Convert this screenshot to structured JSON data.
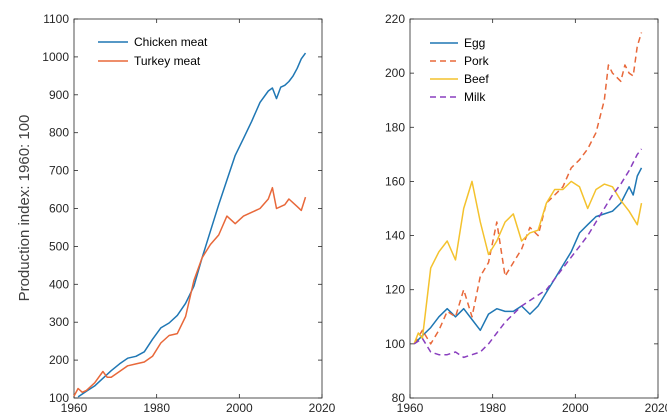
{
  "chart_data": [
    {
      "type": "line",
      "ylabel": "Production index: 1960: 100",
      "xlim": [
        1960,
        2020
      ],
      "ylim": [
        100,
        1100
      ],
      "xticks": [
        1960,
        1980,
        2000,
        2020
      ],
      "yticks": [
        100,
        200,
        300,
        400,
        500,
        600,
        700,
        800,
        900,
        1000,
        1100
      ],
      "legend_position": "top-left",
      "grid": false,
      "series": [
        {
          "name": "Chicken meat",
          "color": "#1f77b4",
          "dash": "solid",
          "x": [
            1961,
            1963,
            1965,
            1967,
            1969,
            1971,
            1973,
            1975,
            1977,
            1979,
            1981,
            1983,
            1985,
            1987,
            1989,
            1991,
            1993,
            1995,
            1997,
            1999,
            2001,
            2003,
            2005,
            2007,
            2008,
            2009,
            2010,
            2011,
            2012,
            2013,
            2014,
            2015,
            2016
          ],
          "y": [
            103,
            118,
            132,
            152,
            172,
            190,
            205,
            210,
            222,
            255,
            285,
            298,
            318,
            350,
            395,
            470,
            540,
            610,
            675,
            740,
            785,
            830,
            880,
            910,
            918,
            890,
            920,
            925,
            935,
            950,
            970,
            995,
            1010
          ]
        },
        {
          "name": "Turkey meat",
          "color": "#e8683a",
          "dash": "solid",
          "x": [
            1960,
            1961,
            1962,
            1963,
            1965,
            1967,
            1968,
            1969,
            1971,
            1973,
            1975,
            1977,
            1979,
            1981,
            1983,
            1985,
            1987,
            1989,
            1991,
            1993,
            1995,
            1997,
            1999,
            2001,
            2003,
            2005,
            2007,
            2008,
            2009,
            2010,
            2011,
            2012,
            2013,
            2014,
            2015,
            2016
          ],
          "y": [
            105,
            125,
            115,
            120,
            140,
            170,
            155,
            155,
            170,
            185,
            190,
            195,
            210,
            245,
            265,
            270,
            315,
            410,
            470,
            505,
            530,
            580,
            560,
            580,
            590,
            600,
            625,
            655,
            600,
            605,
            610,
            625,
            615,
            605,
            595,
            630
          ]
        }
      ]
    },
    {
      "type": "line",
      "xlim": [
        1960,
        2020
      ],
      "ylim": [
        80,
        220
      ],
      "xticks": [
        1960,
        1980,
        2000,
        2020
      ],
      "yticks": [
        80,
        100,
        120,
        140,
        160,
        180,
        200,
        220
      ],
      "legend_position": "top-left",
      "grid": false,
      "series": [
        {
          "name": "Egg",
          "color": "#1f77b4",
          "dash": "solid",
          "x": [
            1961,
            1963,
            1965,
            1967,
            1969,
            1971,
            1973,
            1975,
            1977,
            1979,
            1981,
            1983,
            1985,
            1987,
            1989,
            1991,
            1993,
            1995,
            1997,
            1999,
            2001,
            2003,
            2005,
            2007,
            2009,
            2011,
            2013,
            2014,
            2015,
            2016
          ],
          "y": [
            100,
            103,
            106,
            110,
            113,
            110,
            113,
            109,
            105,
            111,
            113,
            112,
            112,
            114,
            111,
            114,
            119,
            124,
            129,
            134,
            141,
            144,
            147,
            148,
            149,
            152,
            158,
            155,
            162,
            165
          ]
        },
        {
          "name": "Pork",
          "color": "#e8683a",
          "dash": "dashed",
          "x": [
            1961,
            1963,
            1965,
            1967,
            1969,
            1971,
            1973,
            1975,
            1977,
            1979,
            1981,
            1983,
            1985,
            1987,
            1989,
            1991,
            1993,
            1995,
            1997,
            1999,
            2001,
            2003,
            2005,
            2007,
            2008,
            2009,
            2011,
            2012,
            2013,
            2014,
            2015,
            2016
          ],
          "y": [
            100,
            105,
            100,
            105,
            112,
            110,
            120,
            110,
            125,
            130,
            145,
            125,
            130,
            135,
            143,
            140,
            152,
            155,
            158,
            165,
            168,
            172,
            178,
            190,
            203,
            200,
            197,
            203,
            200,
            199,
            210,
            215
          ]
        },
        {
          "name": "Beef",
          "color": "#f4c22d",
          "dash": "solid",
          "x": [
            1961,
            1962,
            1963,
            1965,
            1967,
            1969,
            1971,
            1973,
            1975,
            1977,
            1979,
            1981,
            1983,
            1985,
            1987,
            1989,
            1991,
            1993,
            1995,
            1997,
            1999,
            2001,
            2003,
            2005,
            2007,
            2009,
            2011,
            2013,
            2015,
            2016
          ],
          "y": [
            100,
            104,
            102,
            128,
            134,
            138,
            131,
            150,
            160,
            145,
            133,
            138,
            145,
            148,
            138,
            141,
            142,
            152,
            157,
            157,
            160,
            158,
            150,
            157,
            159,
            158,
            153,
            149,
            144,
            152
          ]
        },
        {
          "name": "Milk",
          "color": "#8a3fbf",
          "dash": "dashed",
          "x": [
            1961,
            1963,
            1965,
            1967,
            1969,
            1971,
            1973,
            1975,
            1977,
            1979,
            1981,
            1983,
            1985,
            1987,
            1989,
            1991,
            1993,
            1995,
            1997,
            1999,
            2001,
            2003,
            2005,
            2007,
            2009,
            2011,
            2013,
            2015,
            2016
          ],
          "y": [
            100,
            102,
            97,
            96,
            96,
            97,
            95,
            96,
            97,
            100,
            104,
            108,
            111,
            114,
            116,
            118,
            120,
            124,
            128,
            132,
            136,
            140,
            145,
            150,
            155,
            159,
            164,
            170,
            172
          ]
        }
      ]
    }
  ]
}
